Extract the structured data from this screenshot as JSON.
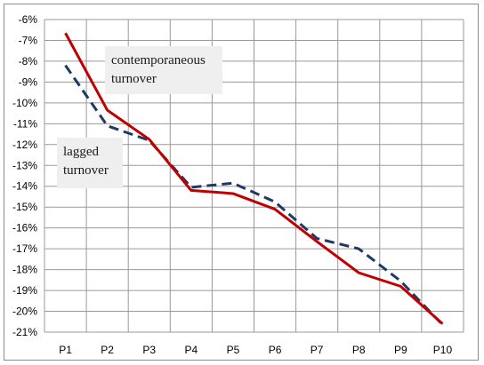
{
  "chart_data": {
    "type": "line",
    "categories": [
      "P1",
      "P2",
      "P3",
      "P4",
      "P5",
      "P6",
      "P7",
      "P8",
      "P9",
      "P10"
    ],
    "series": [
      {
        "name": "contemporaneous turnover",
        "color": "#c00000",
        "dash": "solid",
        "values": [
          -6.65,
          -10.35,
          -11.75,
          -14.2,
          -14.35,
          -15.1,
          -16.65,
          -18.15,
          -18.8,
          -20.6
        ]
      },
      {
        "name": "lagged turnover",
        "color": "#1f3864",
        "dash": "dashed",
        "values": [
          -8.2,
          -11.1,
          -11.8,
          -14.05,
          -13.85,
          -14.75,
          -16.5,
          -17.0,
          -18.55,
          -20.65
        ]
      }
    ],
    "ylim": [
      -21,
      -6
    ],
    "yticks": [
      -6,
      -7,
      -8,
      -9,
      -10,
      -11,
      -12,
      -13,
      -14,
      -15,
      -16,
      -17,
      -18,
      -19,
      -20,
      -21
    ],
    "ytick_labels": [
      "-6%",
      "-7%",
      "-8%",
      "-9%",
      "-10%",
      "-11%",
      "-12%",
      "-13%",
      "-14%",
      "-15%",
      "-16%",
      "-17%",
      "-18%",
      "-19%",
      "-20%",
      "-21%"
    ],
    "grid": true,
    "annotations": [
      {
        "lines": [
          "contemporaneous",
          "turnover"
        ]
      },
      {
        "lines": [
          "lagged",
          "turnover"
        ]
      }
    ],
    "title": "",
    "xlabel": "",
    "ylabel": ""
  }
}
